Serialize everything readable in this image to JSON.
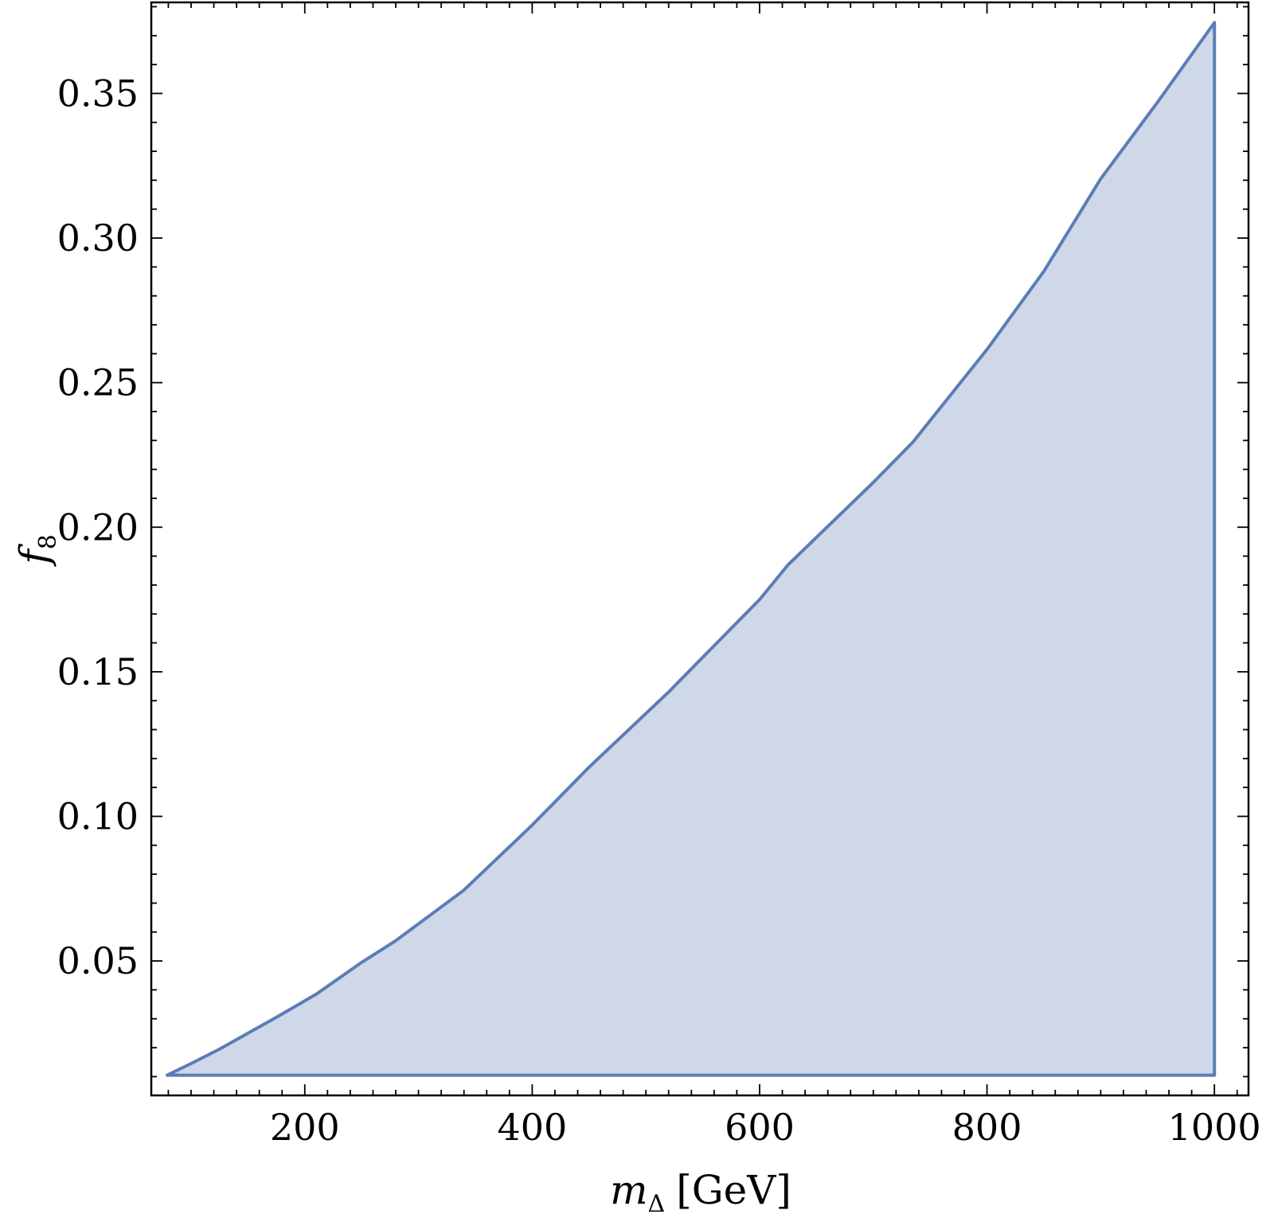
{
  "chart_data": {
    "type": "area",
    "title": "",
    "xlabel": {
      "main": "m",
      "subscript": "Δ",
      "unit": "[GeV]"
    },
    "ylabel": {
      "main": "f",
      "subscript": "8"
    },
    "xlim": [
      65,
      1030
    ],
    "ylim": [
      0.0035,
      0.3815
    ],
    "xticks": [
      200,
      400,
      600,
      800,
      1000
    ],
    "xtick_labels": [
      "200",
      "400",
      "600",
      "800",
      "1000"
    ],
    "yticks": [
      0.05,
      0.1,
      0.15,
      0.2,
      0.25,
      0.3,
      0.35
    ],
    "ytick_labels": [
      "0.05",
      "0.10",
      "0.15",
      "0.20",
      "0.25",
      "0.30",
      "0.35"
    ],
    "grid": false,
    "legend": "none",
    "colors": {
      "stroke": "#5b7db8",
      "fill": "#cfd8e8"
    },
    "series": [
      {
        "x": [
          79,
          100,
          125,
          150,
          175,
          210,
          250,
          280,
          340,
          400,
          450,
          520,
          600,
          625,
          700,
          735,
          800,
          850,
          900,
          950,
          1000
        ],
        "y": [
          0.0105,
          0.0145,
          0.0195,
          0.025,
          0.0305,
          0.0385,
          0.0495,
          0.057,
          0.0745,
          0.097,
          0.117,
          0.143,
          0.175,
          0.187,
          0.2155,
          0.2295,
          0.2615,
          0.2885,
          0.3205,
          0.347,
          0.3745
        ],
        "lower_bound": 0.0105,
        "closed_at_x": 1000
      }
    ]
  }
}
